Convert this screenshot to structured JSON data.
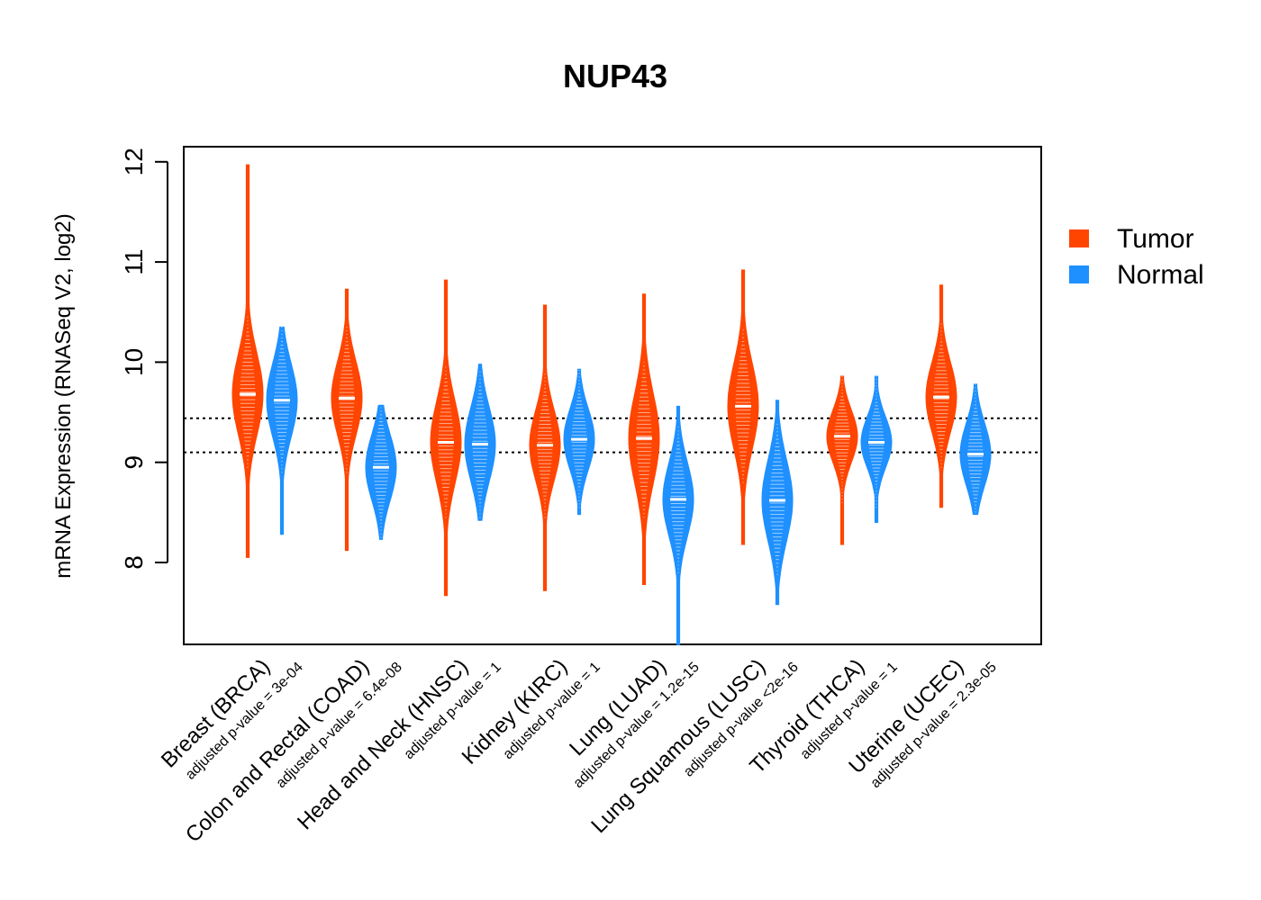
{
  "chart_data": {
    "type": "violin",
    "title": "NUP43",
    "ylabel": "mRNA Expression (RNASeq V2, log2)",
    "ylim": [
      7.2,
      12.2
    ],
    "yticks": [
      "8",
      "9",
      "10",
      "11",
      "12"
    ],
    "reference_lines": [
      9.1,
      9.44
    ],
    "legend": {
      "position": "right",
      "items": [
        {
          "label": "Tumor",
          "color": "#FF4500"
        },
        {
          "label": "Normal",
          "color": "#1E90FF"
        }
      ]
    },
    "groups": [
      {
        "category": "Breast (BRCA)",
        "pvalue": "adjusted p-value = 3e-04",
        "tumor": {
          "min": 8.05,
          "max": 11.97,
          "median": 9.68,
          "q1": 9.45,
          "q3": 9.95
        },
        "normal": {
          "min": 8.28,
          "max": 10.35,
          "median": 9.62,
          "q1": 9.4,
          "q3": 9.85
        }
      },
      {
        "category": "Colon and Rectal (COAD)",
        "pvalue": "adjusted p-value = 6.4e-08",
        "tumor": {
          "min": 8.12,
          "max": 10.73,
          "median": 9.64,
          "q1": 9.4,
          "q3": 9.85
        },
        "normal": {
          "min": 8.23,
          "max": 9.57,
          "median": 8.95,
          "q1": 8.75,
          "q3": 9.15
        }
      },
      {
        "category": "Head and Neck (HNSC)",
        "pvalue": "adjusted p-value = 1",
        "tumor": {
          "min": 7.67,
          "max": 10.82,
          "median": 9.2,
          "q1": 8.95,
          "q3": 9.45
        },
        "normal": {
          "min": 8.42,
          "max": 9.98,
          "median": 9.18,
          "q1": 8.95,
          "q3": 9.4
        }
      },
      {
        "category": "Kidney (KIRC)",
        "pvalue": "adjusted p-value = 1",
        "tumor": {
          "min": 7.72,
          "max": 10.57,
          "median": 9.17,
          "q1": 8.95,
          "q3": 9.38
        },
        "normal": {
          "min": 8.48,
          "max": 9.93,
          "median": 9.23,
          "q1": 9.05,
          "q3": 9.42
        }
      },
      {
        "category": "Lung (LUAD)",
        "pvalue": "adjusted p-value = 1.2e-15",
        "tumor": {
          "min": 7.78,
          "max": 10.68,
          "median": 9.24,
          "q1": 8.95,
          "q3": 9.5
        },
        "normal": {
          "min": 7.18,
          "max": 9.56,
          "median": 8.63,
          "q1": 8.4,
          "q3": 8.85
        }
      },
      {
        "category": "Lung Squamous (LUSC)",
        "pvalue": "adjusted p-value <2e-16",
        "tumor": {
          "min": 8.18,
          "max": 10.92,
          "median": 9.56,
          "q1": 9.3,
          "q3": 9.82
        },
        "normal": {
          "min": 7.58,
          "max": 9.62,
          "median": 8.62,
          "q1": 8.38,
          "q3": 8.88
        }
      },
      {
        "category": "Thyroid (THCA)",
        "pvalue": "adjusted p-value = 1",
        "tumor": {
          "min": 8.18,
          "max": 9.86,
          "median": 9.26,
          "q1": 9.1,
          "q3": 9.42
        },
        "normal": {
          "min": 8.4,
          "max": 9.86,
          "median": 9.2,
          "q1": 9.05,
          "q3": 9.36
        }
      },
      {
        "category": "Uterine (UCEC)",
        "pvalue": "adjusted p-value = 2.3e-05",
        "tumor": {
          "min": 8.55,
          "max": 10.77,
          "median": 9.65,
          "q1": 9.45,
          "q3": 9.88
        },
        "normal": {
          "min": 8.48,
          "max": 9.78,
          "median": 9.08,
          "q1": 8.9,
          "q3": 9.28
        }
      }
    ]
  }
}
